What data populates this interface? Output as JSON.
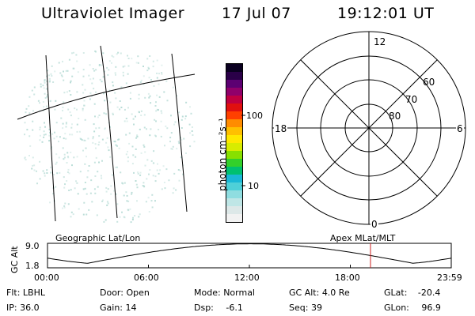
{
  "header": {
    "title": "Ultraviolet Imager",
    "date": "17 Jul 07",
    "time": "19:12:01 UT"
  },
  "geo_panel": {
    "label": "Geographic Lat/Lon"
  },
  "colorbar": {
    "unit_label": "photon cm⁻²s⁻¹",
    "tick_labels": [
      "100",
      "10"
    ],
    "tick_values": [
      100,
      10
    ],
    "colors": [
      "#f2f2f2",
      "#dde8e8",
      "#bfe6e6",
      "#8fdde0",
      "#4ed0d8",
      "#1ab8d6",
      "#00c070",
      "#33d02a",
      "#88e000",
      "#d8ec00",
      "#ffe800",
      "#ffc000",
      "#ff8c00",
      "#ff4000",
      "#e01010",
      "#c00040",
      "#90006a",
      "#5c0072",
      "#2a0048",
      "#0a0020"
    ]
  },
  "polar_panel": {
    "label": "Apex MLat/MLT",
    "mlt_labels": {
      "top": "12",
      "bottom": "0",
      "left": "18",
      "right": "6"
    },
    "lat_labels": [
      "80",
      "70",
      "60"
    ],
    "lat_values": [
      80,
      70,
      60
    ]
  },
  "altitude_panel": {
    "ylabel": "GC Alt",
    "y_ticks": [
      "9.0",
      "1.8"
    ],
    "x_ticks": [
      "00:00",
      "06:00",
      "12:00",
      "18:00",
      "23:59"
    ],
    "current_time_hours": 19.2
  },
  "info": {
    "row1": [
      {
        "key": "Flt:",
        "value": "LBHL"
      },
      {
        "key": "Door:",
        "value": "Open"
      },
      {
        "key": "Mode:",
        "value": "Normal"
      },
      {
        "key": "GC Alt:",
        "value": "4.0 Re"
      },
      {
        "key": "GLat:",
        "value": "-20.4"
      }
    ],
    "row2": [
      {
        "key": "IP:",
        "value": "36.0"
      },
      {
        "key": "Gain:",
        "value": "14"
      },
      {
        "key": "Dsp:",
        "value": "-6.1"
      },
      {
        "key": "Seq:",
        "value": "39"
      },
      {
        "key": "GLon:",
        "value": "96.9"
      }
    ]
  },
  "colors": {
    "marker": "#cc2222",
    "speckle": "#b8dcd6",
    "line": "#000000"
  }
}
